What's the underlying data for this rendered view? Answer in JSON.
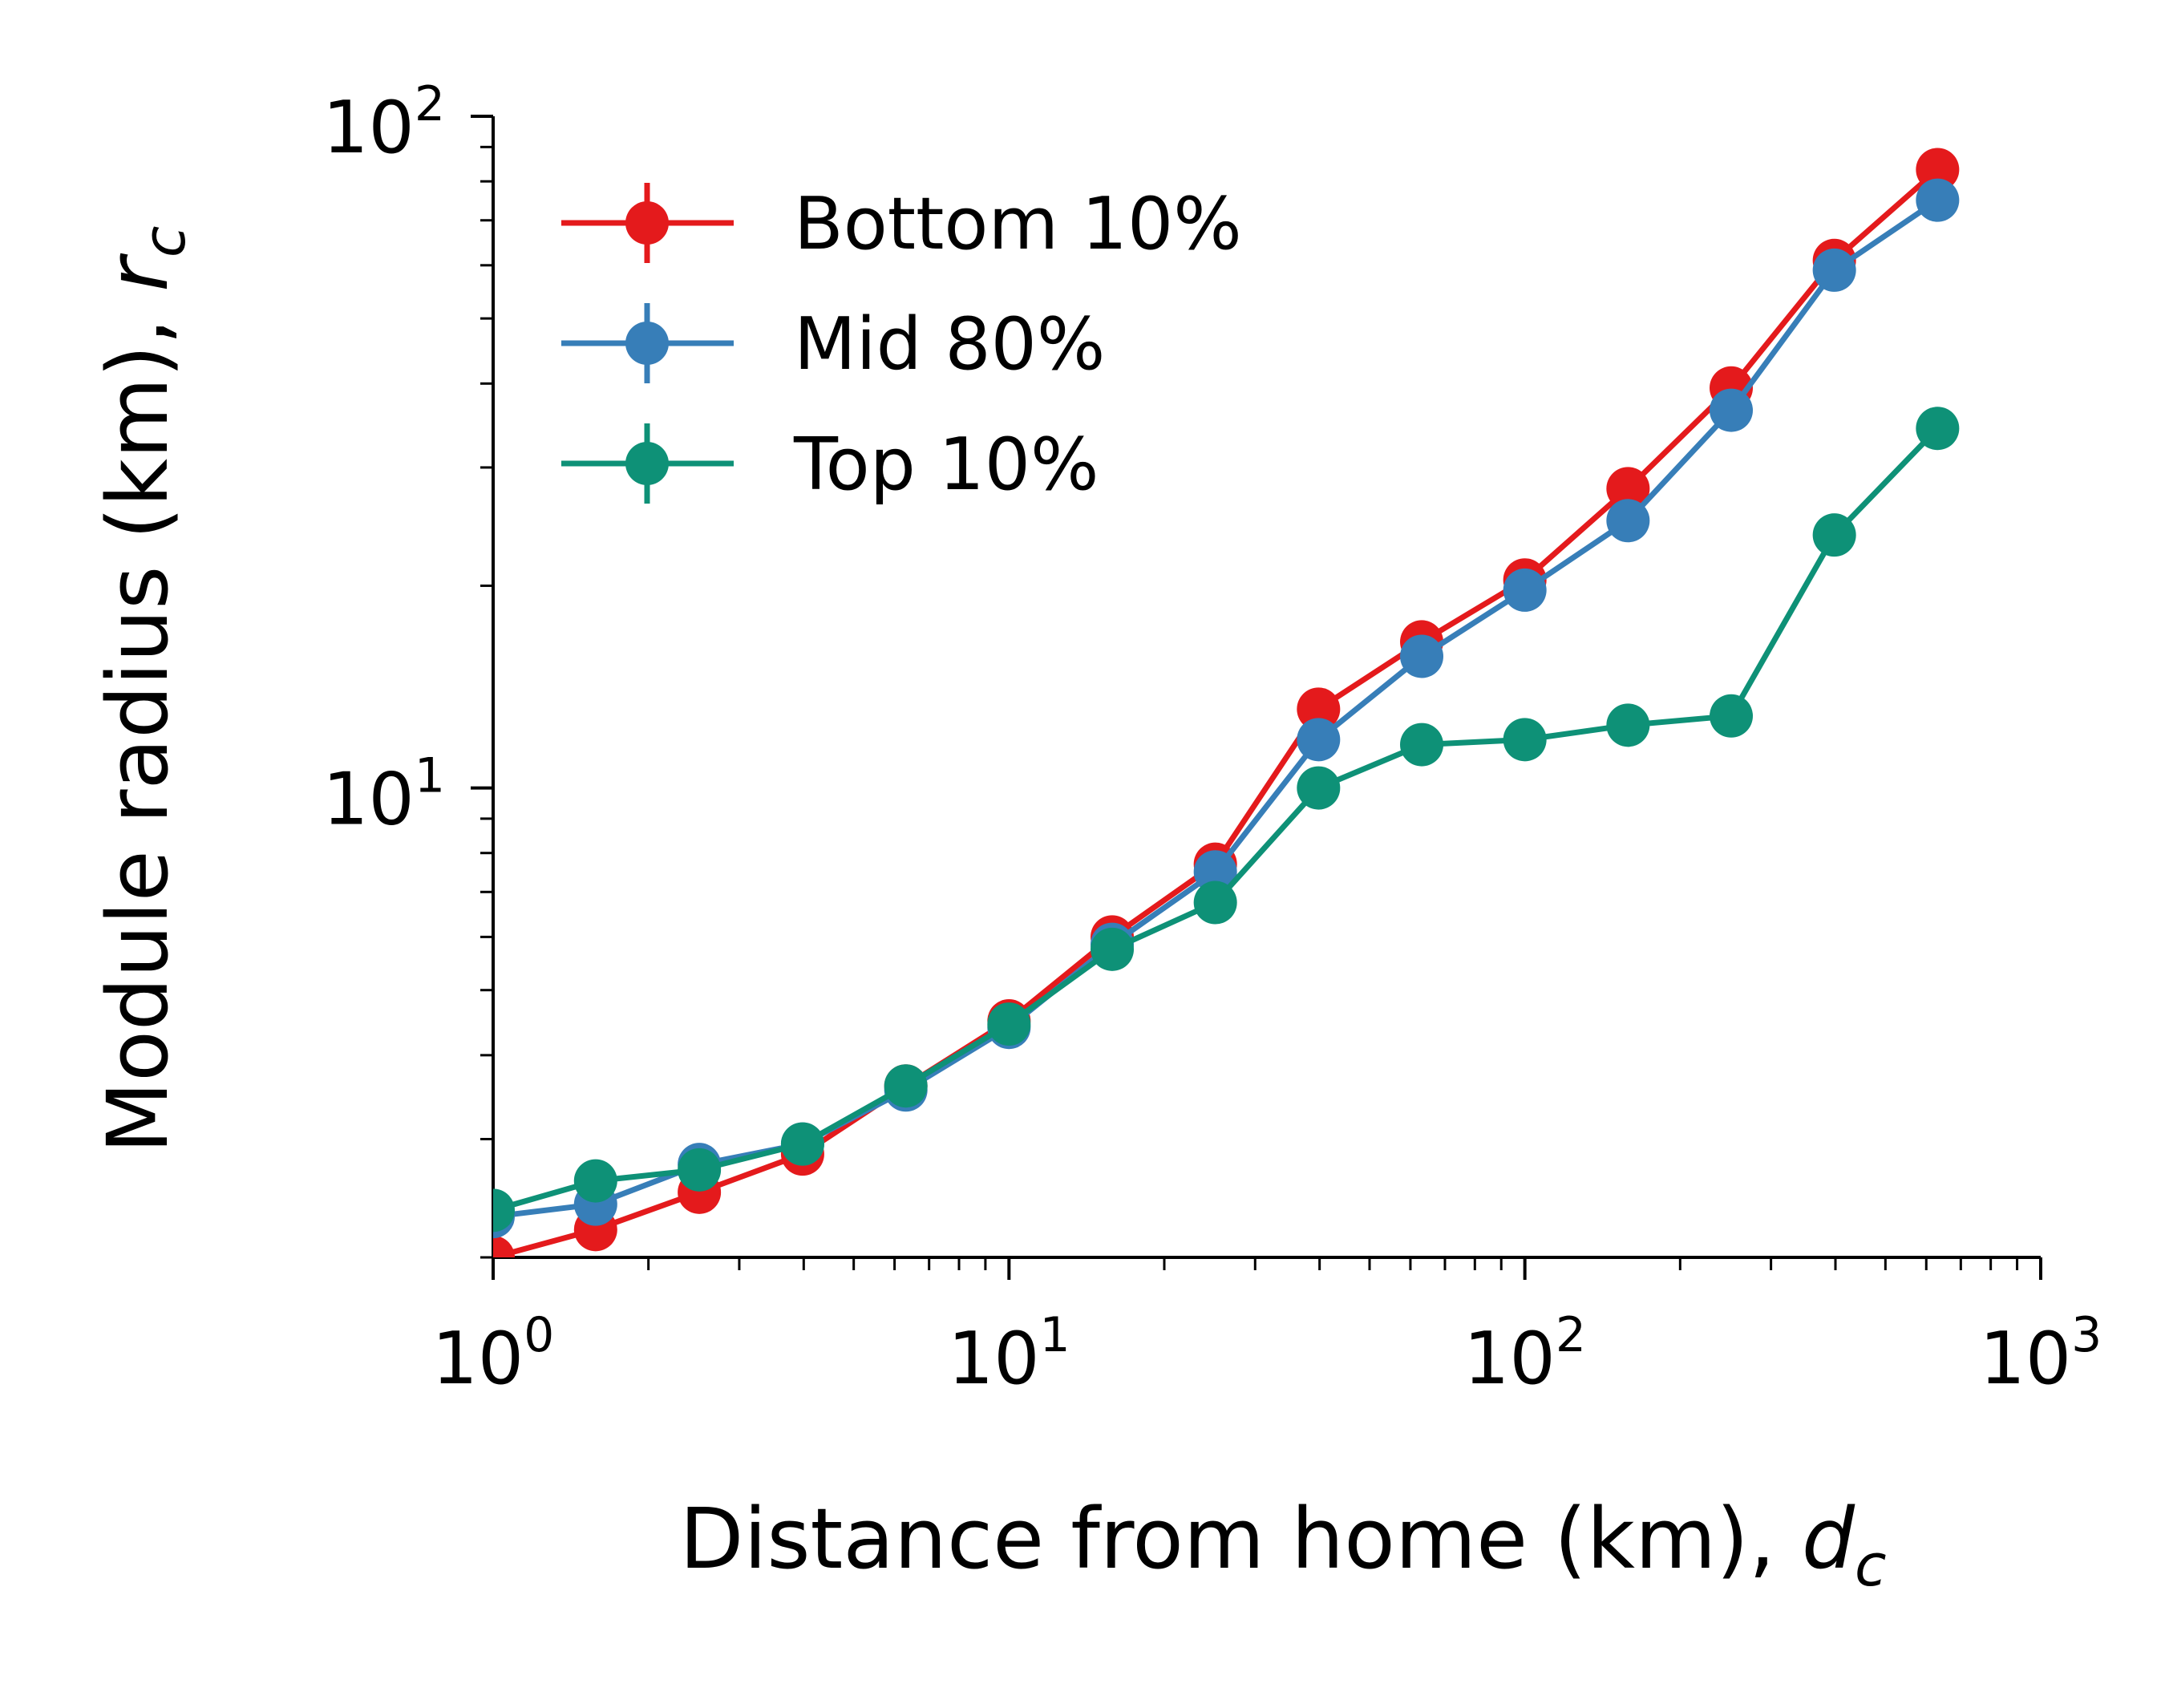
{
  "chart_data": {
    "type": "line",
    "xlabel": "Distance from home (km), ",
    "xlabel_var": "d",
    "xlabel_sub": "c",
    "ylabel": "Module radius (km), ",
    "ylabel_var": "r",
    "ylabel_sub": "c",
    "x_scale": "log",
    "y_scale": "log",
    "xlim": [
      1,
      1000
    ],
    "ylim": [
      2,
      100
    ],
    "x_ticks": [
      {
        "value": 1,
        "base": "10",
        "exp": "0"
      },
      {
        "value": 10,
        "base": "10",
        "exp": "1"
      },
      {
        "value": 100,
        "base": "10",
        "exp": "2"
      },
      {
        "value": 1000,
        "base": "10",
        "exp": "3"
      }
    ],
    "y_ticks": [
      {
        "value": 10,
        "base": "10",
        "exp": "1"
      },
      {
        "value": 100,
        "base": "10",
        "exp": "2"
      }
    ],
    "grid": false,
    "legend_position": "top-left",
    "x": [
      1.0,
      1.58,
      2.51,
      3.98,
      6.31,
      10.0,
      15.85,
      25.12,
      39.81,
      63.1,
      100.0,
      158.5,
      251.2,
      398.1,
      631.0
    ],
    "series": [
      {
        "name": "Bottom 10%",
        "color": "#e41a1c",
        "values": [
          2.0,
          2.2,
          2.5,
          2.85,
          3.6,
          4.5,
          6.0,
          7.7,
          13.1,
          16.5,
          20.4,
          27.9,
          39.4,
          61.0,
          83.3
        ]
      },
      {
        "name": "Mid 80%",
        "color": "#377eb8",
        "values": [
          2.3,
          2.4,
          2.75,
          2.95,
          3.55,
          4.4,
          5.85,
          7.5,
          11.8,
          15.7,
          19.7,
          25.0,
          36.5,
          59.0,
          75.0
        ]
      },
      {
        "name": "Top 10%",
        "color": "#0e9177",
        "values": [
          2.35,
          2.6,
          2.7,
          2.95,
          3.6,
          4.45,
          5.75,
          6.75,
          10.0,
          11.6,
          11.8,
          12.4,
          12.8,
          23.8,
          34.3
        ]
      }
    ]
  }
}
